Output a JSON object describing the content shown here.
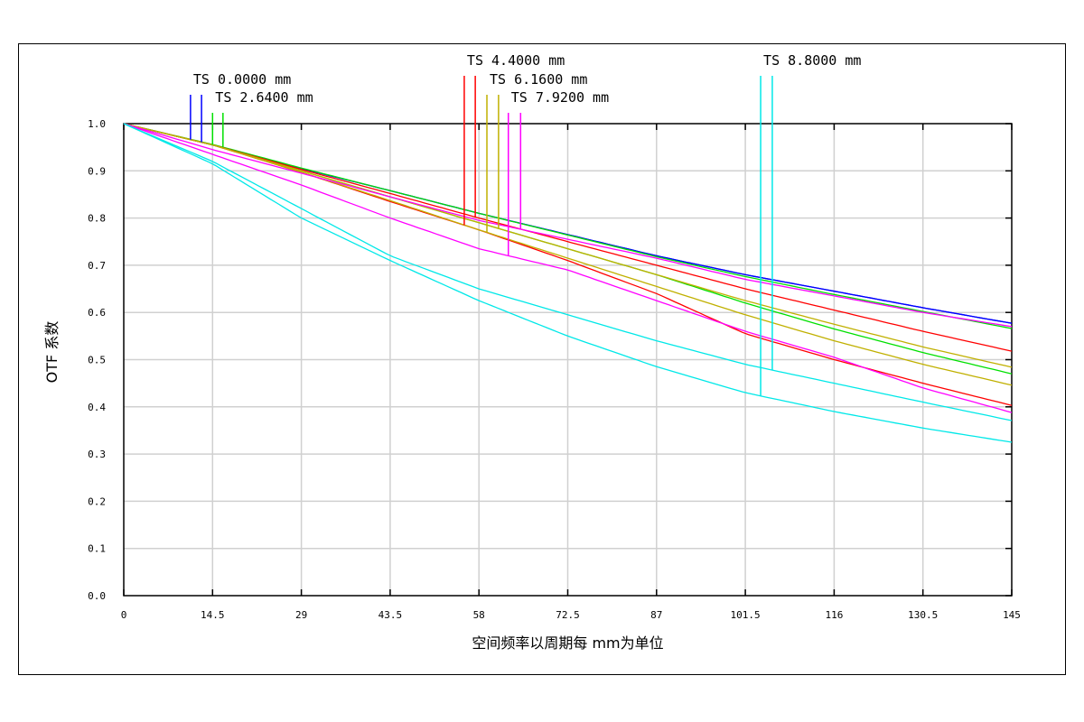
{
  "chart_data": {
    "type": "line",
    "title": "",
    "xlabel": "空间频率以周期每 mm为单位",
    "ylabel": "OTF 系数",
    "xlim": [
      0,
      145
    ],
    "ylim": [
      0,
      1
    ],
    "grid": true,
    "x_ticks": [
      "0",
      "14.5",
      "29",
      "43.5",
      "58",
      "72.5",
      "87",
      "101.5",
      "116",
      "130.5",
      "145"
    ],
    "y_ticks": [
      "0.0",
      "0.1",
      "0.2",
      "0.3",
      "0.4",
      "0.5",
      "0.6",
      "0.7",
      "0.8",
      "0.9",
      "1.0"
    ],
    "x": [
      0,
      14.5,
      29,
      43.5,
      58,
      72.5,
      87,
      101.5,
      116,
      130.5,
      145
    ],
    "fields": [
      {
        "name": "TS 0.0000 mm",
        "color": "#0000ff",
        "markers": [
          10.9,
          12.7
        ],
        "series": [
          [
            1.0,
            0.955,
            0.905,
            0.858,
            0.81,
            0.765,
            0.72,
            0.68,
            0.645,
            0.61,
            0.577
          ],
          [
            1.0,
            0.955,
            0.905,
            0.858,
            0.81,
            0.765,
            0.72,
            0.68,
            0.645,
            0.61,
            0.577
          ]
        ]
      },
      {
        "name": "TS 2.6400 mm",
        "color": "#00e000",
        "markers": [
          14.5,
          16.2
        ],
        "series": [
          [
            1.0,
            0.955,
            0.9,
            0.845,
            0.79,
            0.735,
            0.68,
            0.62,
            0.565,
            0.515,
            0.47
          ],
          [
            1.0,
            0.956,
            0.906,
            0.858,
            0.81,
            0.764,
            0.718,
            0.676,
            0.638,
            0.602,
            0.566
          ]
        ]
      },
      {
        "name": "TS 4.4000 mm",
        "color": "#ff0000",
        "markers": [
          55.6,
          57.4
        ],
        "series": [
          [
            1.0,
            0.955,
            0.897,
            0.835,
            0.775,
            0.71,
            0.64,
            0.555,
            0.5,
            0.45,
            0.403
          ],
          [
            1.0,
            0.955,
            0.903,
            0.852,
            0.8,
            0.75,
            0.7,
            0.65,
            0.605,
            0.56,
            0.518
          ]
        ]
      },
      {
        "name": "TS 6.1600 mm",
        "color": "#c0b000",
        "markers": [
          59.3,
          61.2
        ],
        "series": [
          [
            1.0,
            0.955,
            0.897,
            0.837,
            0.775,
            0.715,
            0.655,
            0.595,
            0.54,
            0.49,
            0.446
          ],
          [
            1.0,
            0.955,
            0.9,
            0.845,
            0.79,
            0.735,
            0.68,
            0.625,
            0.575,
            0.527,
            0.484
          ]
        ]
      },
      {
        "name": "TS 7.9200 mm",
        "color": "#ff00ff",
        "markers": [
          62.8,
          64.8
        ],
        "series": [
          [
            1.0,
            0.935,
            0.87,
            0.8,
            0.735,
            0.69,
            0.625,
            0.56,
            0.505,
            0.44,
            0.388
          ],
          [
            1.0,
            0.945,
            0.895,
            0.845,
            0.795,
            0.755,
            0.715,
            0.67,
            0.635,
            0.6,
            0.57
          ]
        ]
      },
      {
        "name": "TS 8.8000 mm",
        "color": "#00e8e8",
        "markers": [
          104.0,
          105.9
        ],
        "series": [
          [
            1.0,
            0.915,
            0.8,
            0.71,
            0.625,
            0.55,
            0.485,
            0.43,
            0.39,
            0.355,
            0.325
          ],
          [
            1.0,
            0.92,
            0.82,
            0.72,
            0.65,
            0.595,
            0.54,
            0.49,
            0.45,
            0.41,
            0.371
          ]
        ]
      }
    ]
  }
}
